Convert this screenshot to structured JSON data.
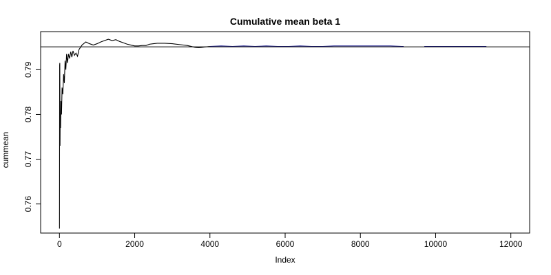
{
  "chart_data": {
    "type": "line",
    "title": "Cumulative mean beta 1",
    "xlabel": "Index",
    "ylabel": "cummean",
    "xlim": [
      -500,
      12500
    ],
    "ylim": [
      0.7535,
      0.7985
    ],
    "x_ticks": [
      0,
      2000,
      4000,
      6000,
      8000,
      10000,
      12000
    ],
    "x_tick_labels": [
      "0",
      "2000",
      "4000",
      "6000",
      "8000",
      "10000",
      "12000"
    ],
    "y_ticks": [
      0.76,
      0.77,
      0.78,
      0.79
    ],
    "y_tick_labels": [
      "0.76",
      "0.77",
      "0.78",
      "0.79"
    ],
    "grid": false,
    "reference_line": {
      "y": 0.7951,
      "color": "#000000"
    },
    "series": [
      {
        "color": "#000000",
        "points": [
          [
            1,
            0.7545
          ],
          [
            5,
            0.791
          ],
          [
            10,
            0.7915
          ],
          [
            15,
            0.773
          ],
          [
            20,
            0.78
          ],
          [
            30,
            0.777
          ],
          [
            40,
            0.783
          ],
          [
            55,
            0.78
          ],
          [
            70,
            0.786
          ],
          [
            90,
            0.7845
          ],
          [
            110,
            0.789
          ],
          [
            130,
            0.787
          ],
          [
            150,
            0.792
          ],
          [
            170,
            0.79
          ],
          [
            190,
            0.7935
          ],
          [
            215,
            0.7915
          ],
          [
            240,
            0.7935
          ],
          [
            270,
            0.7925
          ],
          [
            300,
            0.794
          ],
          [
            330,
            0.7928
          ],
          [
            360,
            0.7942
          ],
          [
            400,
            0.7932
          ],
          [
            440,
            0.7937
          ],
          [
            480,
            0.793
          ],
          [
            520,
            0.7945
          ],
          [
            600,
            0.7955
          ],
          [
            700,
            0.7962
          ],
          [
            800,
            0.7958
          ],
          [
            900,
            0.7955
          ],
          [
            1000,
            0.7958
          ],
          [
            1100,
            0.7962
          ],
          [
            1200,
            0.7965
          ],
          [
            1300,
            0.7968
          ],
          [
            1400,
            0.7965
          ],
          [
            1500,
            0.7967
          ],
          [
            1600,
            0.7963
          ],
          [
            1700,
            0.796
          ],
          [
            1800,
            0.7957
          ],
          [
            1900,
            0.7955
          ],
          [
            2000,
            0.7953
          ],
          [
            2100,
            0.7953
          ],
          [
            2200,
            0.7954
          ],
          [
            2300,
            0.7954
          ],
          [
            2400,
            0.7957
          ],
          [
            2500,
            0.7958
          ],
          [
            2600,
            0.7959
          ],
          [
            2800,
            0.7959
          ],
          [
            3000,
            0.7958
          ],
          [
            3200,
            0.7956
          ],
          [
            3400,
            0.7954
          ],
          [
            3600,
            0.795
          ],
          [
            3700,
            0.7949
          ],
          [
            3800,
            0.795
          ],
          [
            3900,
            0.7951
          ],
          [
            4000,
            0.7952
          ]
        ]
      },
      {
        "color": "#1a1a8c",
        "points": [
          [
            4000,
            0.7952
          ],
          [
            4300,
            0.7953
          ],
          [
            4600,
            0.7952
          ],
          [
            4900,
            0.7953
          ],
          [
            5200,
            0.7952
          ],
          [
            5500,
            0.7953
          ],
          [
            5800,
            0.7952
          ],
          [
            6100,
            0.7952
          ],
          [
            6400,
            0.7953
          ],
          [
            6700,
            0.7952
          ],
          [
            7000,
            0.7952
          ],
          [
            7300,
            0.7953
          ],
          [
            7600,
            0.7953
          ],
          [
            7900,
            0.7953
          ],
          [
            8200,
            0.7953
          ],
          [
            8500,
            0.7953
          ],
          [
            8800,
            0.7953
          ],
          [
            9100,
            0.7952
          ],
          [
            9150,
            0.7952
          ]
        ]
      },
      {
        "color": "#1a1a8c",
        "points": [
          [
            9700,
            0.7952
          ],
          [
            10000,
            0.7952
          ],
          [
            10300,
            0.7952
          ],
          [
            10600,
            0.7952
          ],
          [
            10900,
            0.7952
          ],
          [
            11200,
            0.7952
          ],
          [
            11350,
            0.7952
          ]
        ]
      }
    ]
  }
}
